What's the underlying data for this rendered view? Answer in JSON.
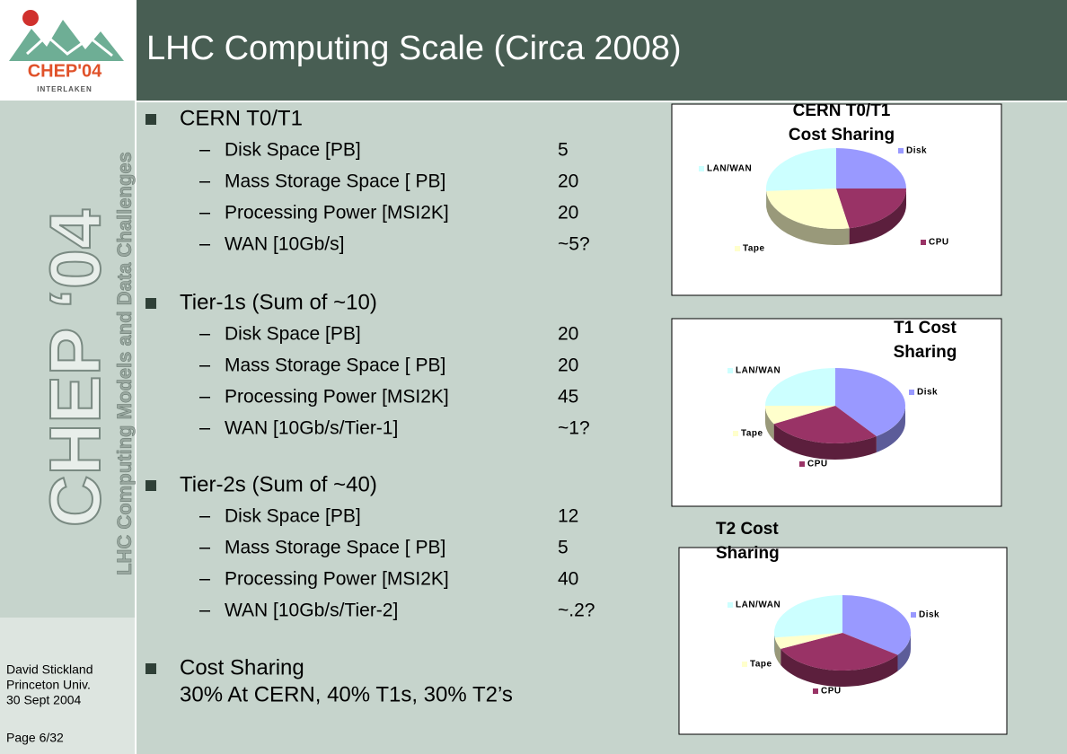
{
  "header": {
    "title": "LHC Computing Scale (Circa 2008)",
    "logo_name": "CHEP'04",
    "logo_place": "INTERLAKEN"
  },
  "sidebar": {
    "conference": "CHEP ‘04",
    "subtitle": "LHC Computing Models and Data Challenges",
    "author_lines": [
      "David Stickland",
      "Princeton Univ.",
      "30 Sept 2004"
    ],
    "page": "Page 6/32"
  },
  "sections": [
    {
      "heading": "CERN T0/T1",
      "items": [
        {
          "label": "Disk Space [PB]",
          "value": "5"
        },
        {
          "label": "Mass Storage Space [ PB]",
          "value": "20"
        },
        {
          "label": "Processing Power [MSI2K]",
          "value": "20"
        },
        {
          "label": "WAN [10Gb/s]",
          "value": "~5?"
        }
      ]
    },
    {
      "heading": "Tier-1s (Sum of ~10)",
      "items": [
        {
          "label": "Disk Space [PB]",
          "value": "20"
        },
        {
          "label": "Mass Storage Space [ PB]",
          "value": "20"
        },
        {
          "label": "Processing Power [MSI2K]",
          "value": "45"
        },
        {
          "label": "WAN [10Gb/s/Tier-1]",
          "value": "~1?"
        }
      ]
    },
    {
      "heading": "Tier-2s (Sum of ~40)",
      "items": [
        {
          "label": "Disk Space [PB]",
          "value": "12"
        },
        {
          "label": "Mass Storage Space [ PB]",
          "value": "5"
        },
        {
          "label": "Processing Power [MSI2K]",
          "value": "40"
        },
        {
          "label": "WAN [10Gb/s/Tier-2]",
          "value": "~.2?"
        }
      ]
    }
  ],
  "cost_sharing": {
    "heading": "Cost Sharing",
    "text": "30% At CERN, 40% T1s, 30% T2’s"
  },
  "charts": [
    {
      "type": "pie",
      "title_lines": [
        "CERN T0/T1",
        "Cost Sharing"
      ],
      "categories": [
        "Disk",
        "CPU",
        "Tape",
        "LAN/WAN"
      ],
      "values": [
        25,
        22,
        27,
        26
      ],
      "colors": [
        "#9999ff",
        "#993366",
        "#ffffcc",
        "#ccffff"
      ]
    },
    {
      "type": "pie",
      "title_lines": [
        "T1 Cost",
        "Sharing"
      ],
      "categories": [
        "Disk",
        "CPU",
        "Tape",
        "LAN/WAN"
      ],
      "values": [
        40,
        27,
        8,
        25
      ],
      "colors": [
        "#9999ff",
        "#993366",
        "#ffffcc",
        "#ccffff"
      ]
    },
    {
      "type": "pie",
      "title_lines": [
        "T2 Cost",
        "Sharing"
      ],
      "categories": [
        "Disk",
        "CPU",
        "Tape",
        "LAN/WAN"
      ],
      "values": [
        35,
        33,
        5,
        27
      ],
      "colors": [
        "#9999ff",
        "#993366",
        "#ffffcc",
        "#ccffff"
      ]
    }
  ]
}
